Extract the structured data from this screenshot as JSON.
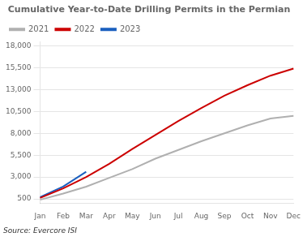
{
  "chart_data": {
    "type": "line",
    "title": "Cumulative Year-to-Date Drilling Permits in the Permian",
    "annotations": [
      "Source: Evercore ISI"
    ],
    "categories": [
      "Jan",
      "Feb",
      "Mar",
      "Apr",
      "May",
      "Jun",
      "Jul",
      "Aug",
      "Sep",
      "Oct",
      "Nov",
      "Dec"
    ],
    "series": [
      {
        "name": "2021",
        "color": "#b0b0b0",
        "values": [
          400,
          1100,
          1900,
          2900,
          3900,
          5100,
          6100,
          7100,
          8000,
          8900,
          9700,
          10000
        ]
      },
      {
        "name": "2022",
        "color": "#cc0000",
        "values": [
          600,
          1700,
          3000,
          4500,
          6200,
          7800,
          9400,
          10900,
          12300,
          13500,
          14600,
          15400
        ]
      },
      {
        "name": "2023",
        "color": "#1a5fbf",
        "values": [
          700,
          1900,
          3600,
          null,
          null,
          null,
          null,
          null,
          null,
          null,
          null,
          null
        ]
      }
    ],
    "ylim": [
      0,
      18500
    ],
    "yticks": [
      500,
      {
        "value": 3000,
        "label": "3,000"
      },
      {
        "value": 5500,
        "label": "5,500"
      },
      {
        "value": 8000,
        "label": "8,000"
      },
      {
        "value": 10500,
        "label": "10,500"
      },
      {
        "value": 13000,
        "label": "13,000"
      },
      {
        "value": 15500,
        "label": "15,500"
      },
      {
        "value": 18000,
        "label": "18,000"
      }
    ],
    "grid": true,
    "legend": "upper left"
  }
}
